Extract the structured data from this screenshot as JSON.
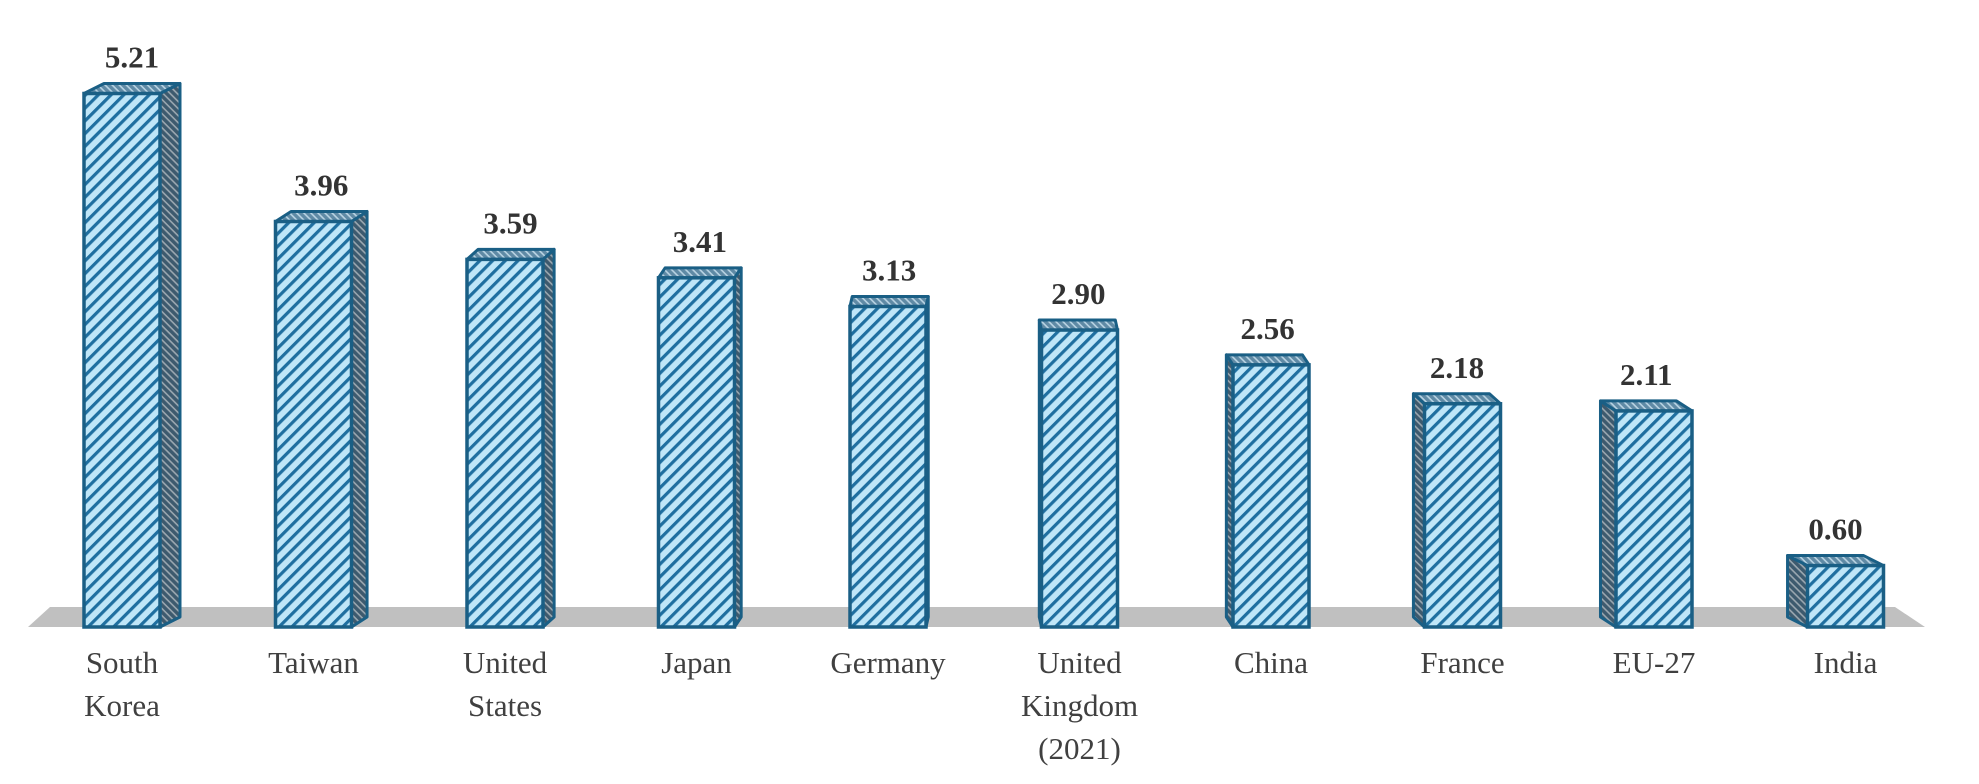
{
  "chart_data": {
    "type": "bar",
    "categories": [
      [
        "South",
        "Korea"
      ],
      [
        "Taiwan"
      ],
      [
        "United",
        "States"
      ],
      [
        "Japan"
      ],
      [
        "Germany"
      ],
      [
        "United",
        "Kingdom",
        "(2021)"
      ],
      [
        "China"
      ],
      [
        "France"
      ],
      [
        "EU-27"
      ],
      [
        "India"
      ]
    ],
    "values": [
      5.21,
      3.96,
      3.59,
      3.41,
      3.13,
      2.9,
      2.56,
      2.18,
      2.11,
      0.6
    ],
    "value_labels": [
      "5.21",
      "3.96",
      "3.59",
      "3.41",
      "3.13",
      "2.90",
      "2.56",
      "2.18",
      "2.11",
      "0.60"
    ],
    "title": "",
    "xlabel": "",
    "ylabel": "",
    "ylim": [
      0,
      5.21
    ],
    "grid": false,
    "style": "3d-columns-hatched",
    "colors": {
      "bar_fill": "#bfe6f8",
      "bar_hatch": "#1f6fa0",
      "bar_edge": "#1a5f85",
      "floor": "#c0c0c0"
    }
  }
}
